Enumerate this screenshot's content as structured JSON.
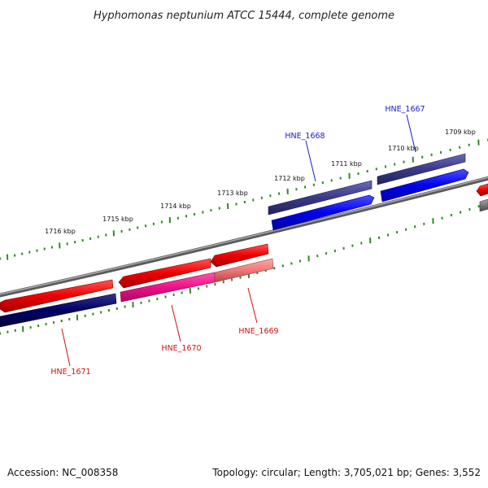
{
  "title": "Hyphomonas neptunium ATCC 15444, complete genome",
  "footer": {
    "accession": "Accession: NC_008358",
    "summary": "Topology: circular; Length: 3,705,021 bp; Genes: 3,552"
  },
  "colors": {
    "backbone": "#808080",
    "tick": "#2e8b22",
    "forward_label": "#1a1acc",
    "reverse_label": "#cc1111",
    "forward_cds": "#0000ee",
    "forward_gene": "#3a3a88",
    "reverse_cds": "#ee0000",
    "reverse_gene_dark": "#000066",
    "reverse_gene_pink": "#ee1188",
    "reverse_gene_light": "#ee7777"
  },
  "scale": {
    "unit": "kbp",
    "labels": [
      "1716 kbp",
      "1715 kbp",
      "1714 kbp",
      "1713 kbp",
      "1712 kbp",
      "1711 kbp",
      "1710 kbp",
      "1709 kbp"
    ]
  },
  "genes": [
    {
      "id": "HNE_1667",
      "strand": "forward"
    },
    {
      "id": "HNE_1668",
      "strand": "forward"
    },
    {
      "id": "HNE_1669",
      "strand": "reverse"
    },
    {
      "id": "HNE_1670",
      "strand": "reverse"
    },
    {
      "id": "HNE_1671",
      "strand": "reverse"
    }
  ]
}
